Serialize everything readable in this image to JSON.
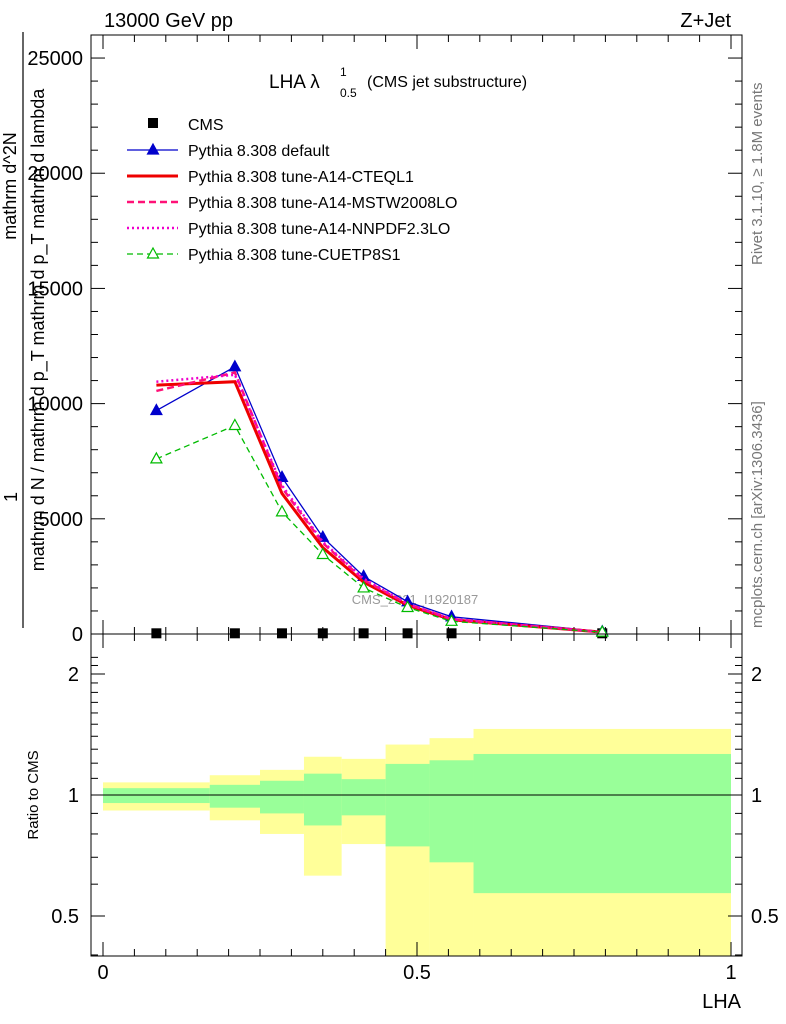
{
  "header": {
    "energy": "13000 GeV pp",
    "process": "Z+Jet"
  },
  "side_labels": {
    "rivet": "Rivet 3.1.10, ≥ 1.8M events",
    "mcplots": "mcplots.cern.ch [arXiv:1306.3436]"
  },
  "watermark": "CMS_2021_I1920187",
  "chart_data": [
    {
      "type": "line",
      "panel": "main",
      "title_main": "LHA λ",
      "title_sup": "1",
      "title_sub": "0.5",
      "title_suffix": "(CMS jet substructure)",
      "ylabel_top": "1",
      "ylabel_line1": "mathrm d N / mathrm d p_T mathrm d p_T mathrm d lambda",
      "ylabel_line2": "mathrm d^2N",
      "xlabel": "",
      "xlim": [
        0,
        1
      ],
      "ylim": [
        0,
        26000
      ],
      "yticks": [
        0,
        5000,
        10000,
        15000,
        20000,
        25000
      ],
      "ytick_labels": [
        "0",
        "5000",
        "10000",
        "15000",
        "20000",
        "25000"
      ],
      "legend_position": "top-left",
      "series": [
        {
          "name": "CMS",
          "style": "data",
          "color": "#000000",
          "x": [
            0.085,
            0.21,
            0.285,
            0.35,
            0.415,
            0.485,
            0.555,
            0.795
          ],
          "y": [
            30,
            30,
            30,
            30,
            30,
            30,
            30,
            30
          ]
        },
        {
          "name": "Pythia 8.308 default",
          "style": "solid-triangle",
          "color": "#0000cc",
          "x": [
            0.085,
            0.21,
            0.285,
            0.35,
            0.415,
            0.485,
            0.555,
            0.795
          ],
          "y": [
            9700,
            11600,
            6800,
            4200,
            2500,
            1400,
            750,
            100
          ]
        },
        {
          "name": "Pythia 8.308 tune-A14-CTEQL1",
          "style": "solid-thick",
          "color": "#ee0000",
          "x": [
            0.085,
            0.21,
            0.285,
            0.35,
            0.415,
            0.485,
            0.555,
            0.795
          ],
          "y": [
            10800,
            10950,
            6100,
            3750,
            2250,
            1250,
            620,
            80
          ]
        },
        {
          "name": "Pythia 8.308 tune-A14-MSTW2008LO",
          "style": "dashed",
          "color": "#ff1177",
          "x": [
            0.085,
            0.21,
            0.285,
            0.35,
            0.415,
            0.485,
            0.555,
            0.795
          ],
          "y": [
            10550,
            11350,
            6350,
            3950,
            2350,
            1300,
            650,
            80
          ]
        },
        {
          "name": "Pythia 8.308 tune-A14-NNPDF2.3LO",
          "style": "dotted",
          "color": "#ee00cc",
          "x": [
            0.085,
            0.21,
            0.285,
            0.35,
            0.415,
            0.485,
            0.555,
            0.795
          ],
          "y": [
            10950,
            11250,
            6450,
            4000,
            2400,
            1300,
            650,
            80
          ]
        },
        {
          "name": "Pythia 8.308 tune-CUETP8S1",
          "style": "dashed-open-triangle",
          "color": "#00bb00",
          "x": [
            0.085,
            0.21,
            0.285,
            0.35,
            0.415,
            0.485,
            0.555,
            0.795
          ],
          "y": [
            7600,
            9050,
            5300,
            3450,
            2000,
            1150,
            550,
            80
          ]
        }
      ]
    },
    {
      "type": "area",
      "panel": "ratio",
      "ylabel": "Ratio to CMS",
      "xlabel": "LHA",
      "xlim": [
        0,
        1
      ],
      "ylim": [
        0.33,
        2.3
      ],
      "yticks": [
        0.5,
        1,
        2
      ],
      "ytick_labels": [
        "0.5",
        "1",
        "2"
      ],
      "xticks": [
        0,
        0.5,
        1
      ],
      "xtick_labels": [
        "0",
        "0.5",
        "1"
      ],
      "bins": [
        {
          "lo": 0.0,
          "hi": 0.17,
          "inner": [
            0.955,
            1.04
          ],
          "outer": [
            0.915,
            1.075
          ]
        },
        {
          "lo": 0.17,
          "hi": 0.25,
          "inner": [
            0.93,
            1.06
          ],
          "outer": [
            0.865,
            1.12
          ]
        },
        {
          "lo": 0.25,
          "hi": 0.32,
          "inner": [
            0.9,
            1.085
          ],
          "outer": [
            0.8,
            1.155
          ]
        },
        {
          "lo": 0.32,
          "hi": 0.38,
          "inner": [
            0.84,
            1.13
          ],
          "outer": [
            0.63,
            1.245
          ]
        },
        {
          "lo": 0.38,
          "hi": 0.45,
          "inner": [
            0.89,
            1.095
          ],
          "outer": [
            0.755,
            1.23
          ]
        },
        {
          "lo": 0.45,
          "hi": 0.52,
          "inner": [
            0.745,
            1.195
          ],
          "outer": [
            0.33,
            1.335
          ]
        },
        {
          "lo": 0.52,
          "hi": 0.59,
          "inner": [
            0.68,
            1.22
          ],
          "outer": [
            0.33,
            1.385
          ]
        },
        {
          "lo": 0.59,
          "hi": 1.0,
          "inner": [
            0.57,
            1.265
          ],
          "outer": [
            0.33,
            1.46
          ]
        }
      ],
      "inner_color": "#99ff99",
      "outer_color": "#ffff99",
      "reference_value": 1
    }
  ]
}
